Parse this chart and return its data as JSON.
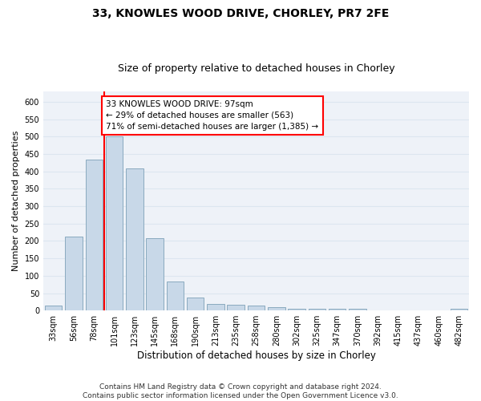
{
  "title": "33, KNOWLES WOOD DRIVE, CHORLEY, PR7 2FE",
  "subtitle": "Size of property relative to detached houses in Chorley",
  "xlabel": "Distribution of detached houses by size in Chorley",
  "ylabel": "Number of detached properties",
  "categories": [
    "33sqm",
    "56sqm",
    "78sqm",
    "101sqm",
    "123sqm",
    "145sqm",
    "168sqm",
    "190sqm",
    "213sqm",
    "235sqm",
    "258sqm",
    "280sqm",
    "302sqm",
    "325sqm",
    "347sqm",
    "370sqm",
    "392sqm",
    "415sqm",
    "437sqm",
    "460sqm",
    "482sqm"
  ],
  "values": [
    15,
    212,
    435,
    500,
    408,
    208,
    83,
    37,
    20,
    17,
    15,
    10,
    5,
    5,
    5,
    5,
    0,
    0,
    0,
    0,
    5
  ],
  "bar_color": "#c8d8e8",
  "bar_edge_color": "#8aaabf",
  "reference_line_color": "red",
  "annotation_text": "33 KNOWLES WOOD DRIVE: 97sqm\n← 29% of detached houses are smaller (563)\n71% of semi-detached houses are larger (1,385) →",
  "annotation_box_color": "white",
  "annotation_box_edge_color": "red",
  "ylim": [
    0,
    630
  ],
  "yticks": [
    0,
    50,
    100,
    150,
    200,
    250,
    300,
    350,
    400,
    450,
    500,
    550,
    600
  ],
  "grid_color": "#dce6f0",
  "background_color": "#eef2f8",
  "footer_text": "Contains HM Land Registry data © Crown copyright and database right 2024.\nContains public sector information licensed under the Open Government Licence v3.0.",
  "title_fontsize": 10,
  "subtitle_fontsize": 9,
  "xlabel_fontsize": 8.5,
  "ylabel_fontsize": 8,
  "tick_fontsize": 7,
  "annotation_fontsize": 7.5,
  "footer_fontsize": 6.5
}
